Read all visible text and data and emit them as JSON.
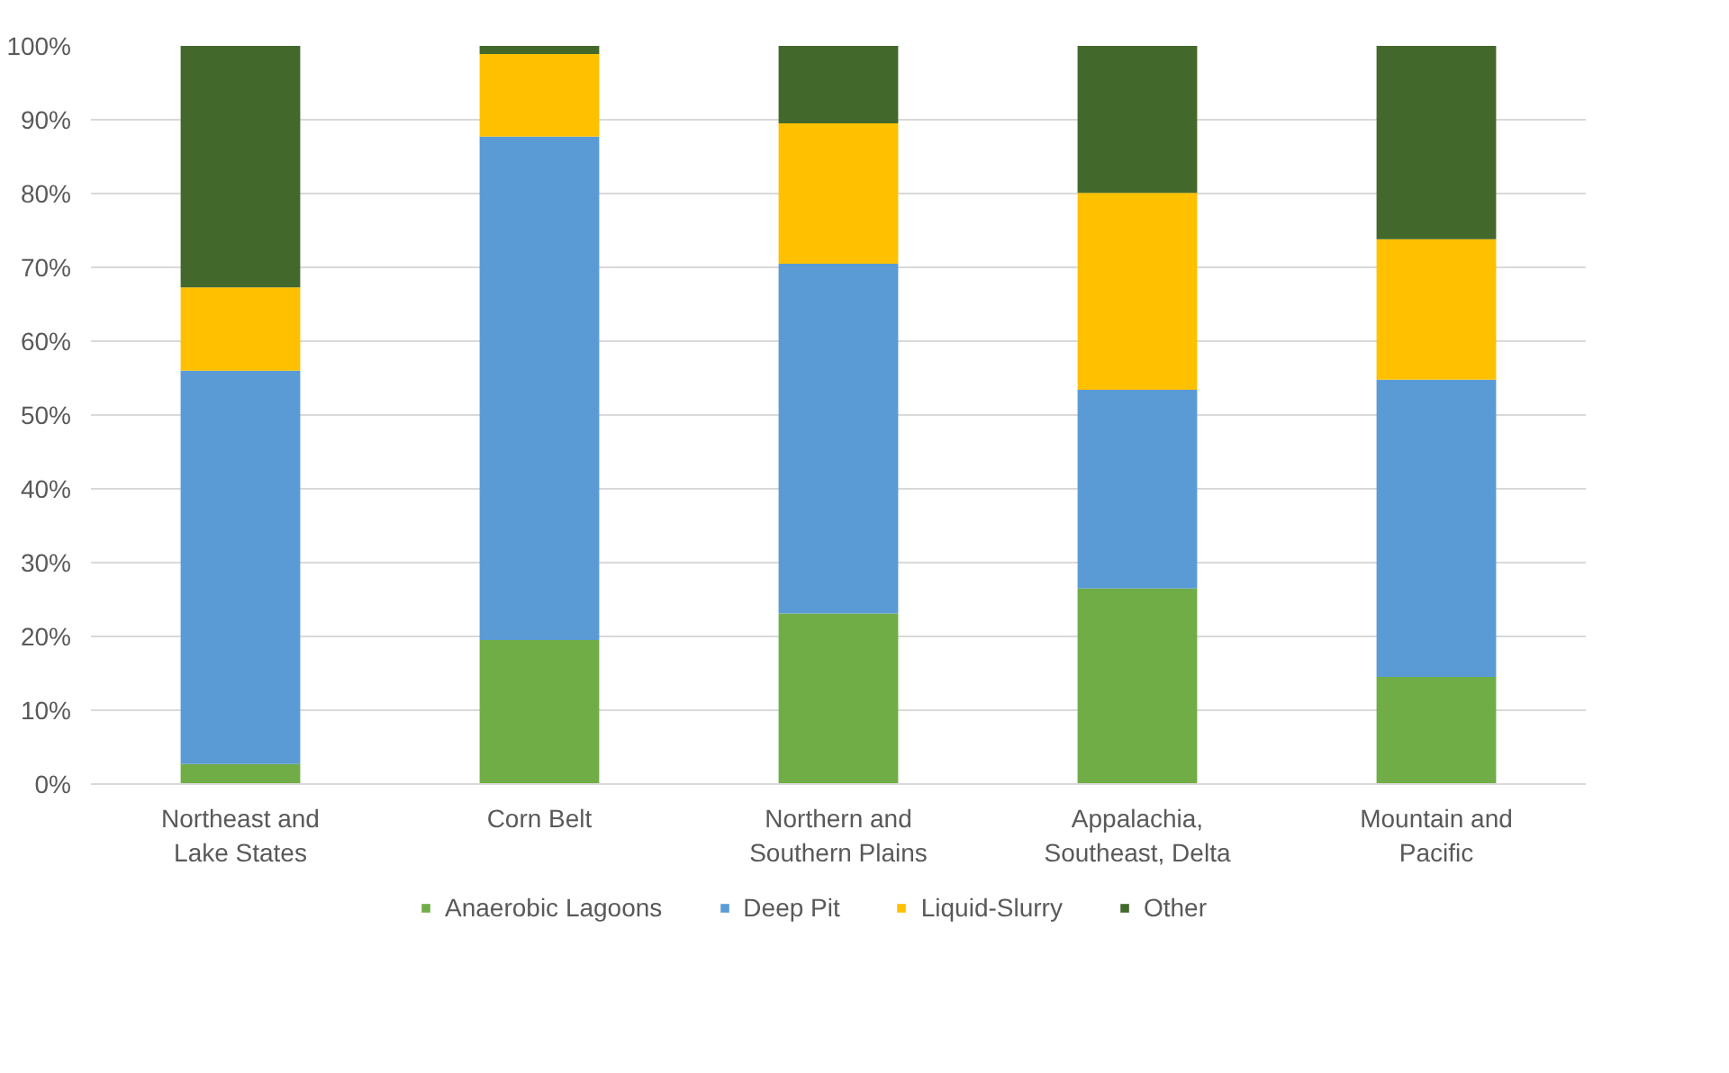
{
  "chart_data": {
    "type": "bar",
    "stacked": true,
    "categories": [
      "Northeast and Lake States",
      "Corn Belt",
      "Northern and Southern Plains",
      "Appalachia, Southeast, Delta",
      "Mountain and Pacific"
    ],
    "series": [
      {
        "name": "Anaerobic Lagoons",
        "color": "#70ad47",
        "values": [
          2.7,
          19.5,
          23.1,
          26.5,
          14.5
        ]
      },
      {
        "name": "Deep Pit",
        "color": "#5b9bd5",
        "values": [
          53.3,
          68.2,
          47.4,
          26.9,
          40.3
        ]
      },
      {
        "name": "Liquid-Slurry",
        "color": "#ffc000",
        "values": [
          11.3,
          11.2,
          19.0,
          26.7,
          19.0
        ]
      },
      {
        "name": "Other",
        "color": "#43682b",
        "values": [
          32.7,
          1.1,
          10.5,
          19.9,
          26.2
        ]
      }
    ],
    "ylim": [
      0,
      100
    ],
    "yticks": [
      {
        "value": 0,
        "label": "0%"
      },
      {
        "value": 10,
        "label": "10%"
      },
      {
        "value": 20,
        "label": "20%"
      },
      {
        "value": 30,
        "label": "30%"
      },
      {
        "value": 40,
        "label": "40%"
      },
      {
        "value": 50,
        "label": "50%"
      },
      {
        "value": 60,
        "label": "60%"
      },
      {
        "value": 70,
        "label": "70%"
      },
      {
        "value": 80,
        "label": "80%"
      },
      {
        "value": 90,
        "label": "90%"
      },
      {
        "value": 100,
        "label": "100%"
      }
    ],
    "grid": "y",
    "legend": "bottom"
  }
}
